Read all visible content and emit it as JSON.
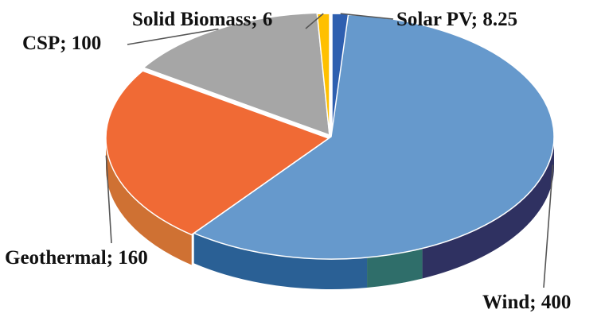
{
  "chart_data": {
    "type": "pie",
    "style": "3d-exploded-free",
    "start_angle_deg": 0,
    "direction": "clockwise",
    "slices": [
      {
        "name": "Solar PV",
        "value": 8.25,
        "label": "Solar PV; 8.25",
        "color": "#2e5fb0",
        "side_color": "#22477f"
      },
      {
        "name": "Wind",
        "value": 400,
        "label": "Wind; 400",
        "color": "#6699cc",
        "side_color": "#2a6095",
        "side_color_2": "#2f6e6a",
        "side_color_3": "#2f3161"
      },
      {
        "name": "Geothermal",
        "value": 160,
        "label": "Geothermal; 160",
        "color": "#f06a35",
        "side_color": "#cf7133"
      },
      {
        "name": "CSP",
        "value": 100,
        "label": "CSP; 100",
        "color": "#a6a6a6",
        "side_color": "#7f7f7f"
      },
      {
        "name": "Solid Biomass",
        "value": 6,
        "label": "Solid Biomass; 6",
        "color": "#ffc000",
        "side_color": "#c79500"
      }
    ],
    "legend": "none",
    "data_labels": "outside-with-leader-lines"
  }
}
